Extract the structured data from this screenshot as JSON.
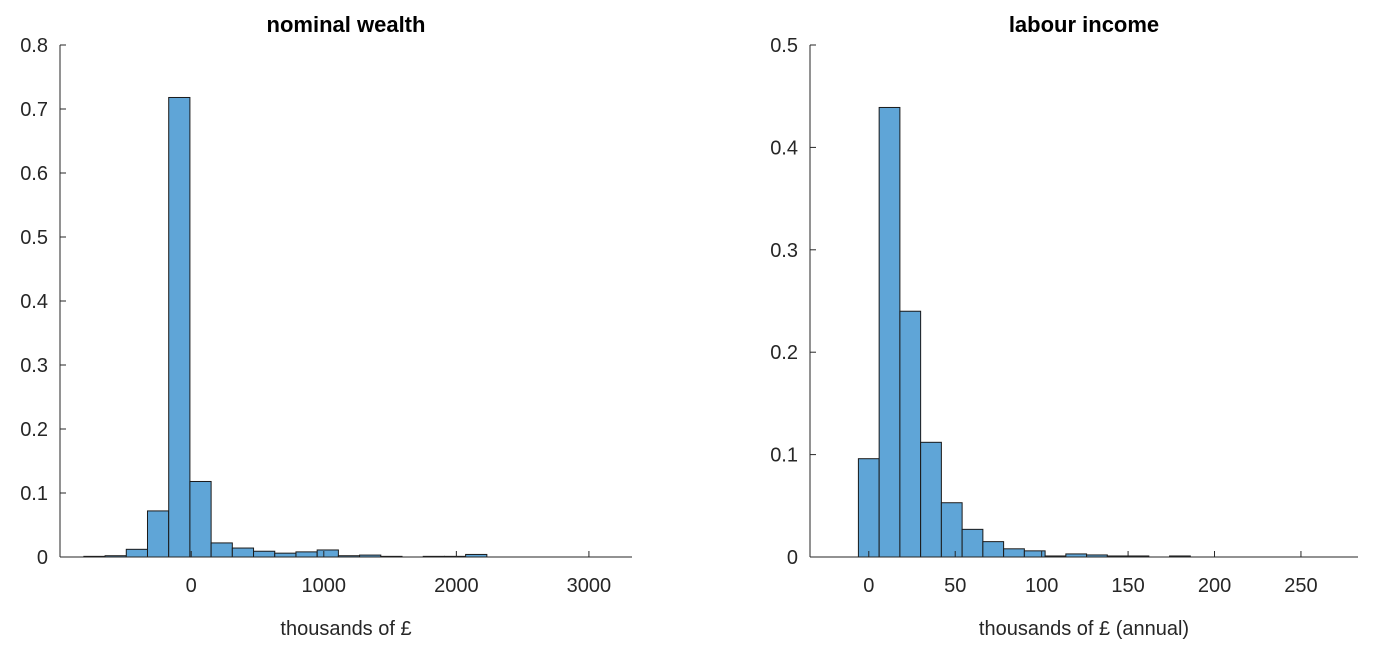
{
  "chart_data": [
    {
      "type": "histogram",
      "title": "nominal wealth",
      "x_label": "thousands of £",
      "bins": [
        -810,
        -650,
        -490,
        -330,
        -170,
        -10,
        150,
        310,
        470,
        630,
        790,
        950,
        1110,
        1270,
        1430,
        1590,
        1750,
        1910,
        2070,
        2230,
        2390,
        2550,
        2710,
        2870,
        3030,
        3190
      ],
      "values": [
        0.001,
        0.002,
        0.012,
        0.072,
        0.718,
        0.118,
        0.022,
        0.014,
        0.009,
        0.006,
        0.008,
        0.011,
        0.002,
        0.003,
        0.001,
        0,
        0.001,
        0.001,
        0.004,
        0,
        0,
        0,
        0,
        0,
        0
      ],
      "color": "#5fa5d7",
      "xlim": [
        -990,
        3325
      ],
      "xticks": [
        0,
        1000,
        2000,
        3000
      ],
      "ylim": [
        0,
        0.8
      ],
      "yticks": [
        0,
        0.1,
        0.2,
        0.3,
        0.4,
        0.5,
        0.6,
        0.7,
        0.8
      ]
    },
    {
      "type": "histogram",
      "title": "labour income",
      "x_label": "thousands of £ (annual)",
      "bins": [
        -18,
        -6,
        6,
        18,
        30,
        42,
        54,
        66,
        78,
        90,
        102,
        114,
        126,
        138,
        150,
        162,
        174,
        186,
        198,
        210,
        222,
        234,
        246,
        258,
        270,
        282
      ],
      "values": [
        0,
        0.096,
        0.439,
        0.24,
        0.112,
        0.053,
        0.027,
        0.015,
        0.008,
        0.006,
        0.001,
        0.003,
        0.002,
        0.001,
        0.001,
        0,
        0.001,
        0,
        0,
        0,
        0,
        0,
        0,
        0,
        0
      ],
      "color": "#5fa5d7",
      "xlim": [
        -34,
        283
      ],
      "xticks": [
        0,
        50,
        100,
        150,
        200,
        250
      ],
      "ylim": [
        0,
        0.5
      ],
      "yticks": [
        0,
        0.1,
        0.2,
        0.3,
        0.4,
        0.5
      ]
    }
  ]
}
